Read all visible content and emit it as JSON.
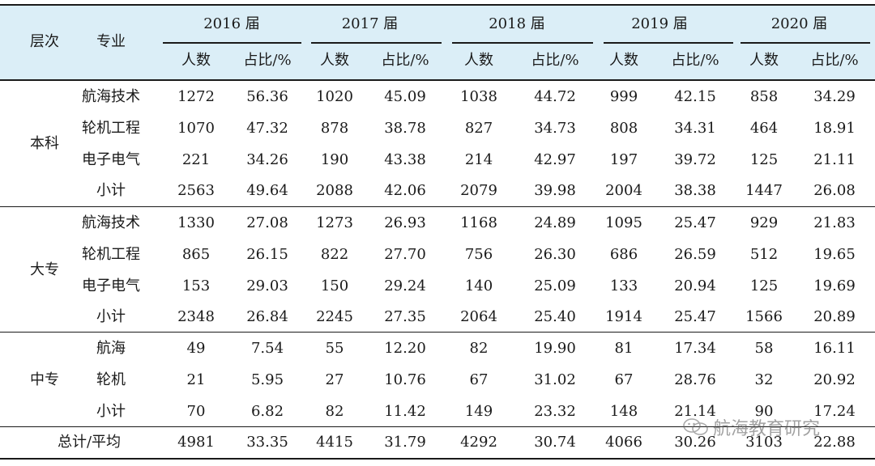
{
  "header": {
    "level_label": "层次",
    "major_label": "专业",
    "years": [
      "2016 届",
      "2017 届",
      "2018 届",
      "2019 届",
      "2020 届"
    ],
    "count_label": "人数",
    "ratio_label": "占比/%"
  },
  "groups": [
    {
      "level": "本科",
      "rows": [
        {
          "major": "航海技术",
          "values": [
            "1272",
            "56.36",
            "1020",
            "45.09",
            "1038",
            "44.72",
            "999",
            "42.15",
            "858",
            "34.29"
          ]
        },
        {
          "major": "轮机工程",
          "values": [
            "1070",
            "47.32",
            "878",
            "38.78",
            "827",
            "34.73",
            "808",
            "34.31",
            "464",
            "18.91"
          ]
        },
        {
          "major": "电子电气",
          "values": [
            "221",
            "34.26",
            "190",
            "43.38",
            "214",
            "42.97",
            "197",
            "39.72",
            "125",
            "21.11"
          ]
        },
        {
          "major": "小计",
          "values": [
            "2563",
            "49.64",
            "2088",
            "42.06",
            "2079",
            "39.98",
            "2004",
            "38.38",
            "1447",
            "26.08"
          ]
        }
      ]
    },
    {
      "level": "大专",
      "rows": [
        {
          "major": "航海技术",
          "values": [
            "1330",
            "27.08",
            "1273",
            "26.93",
            "1168",
            "24.89",
            "1095",
            "25.47",
            "929",
            "21.83"
          ]
        },
        {
          "major": "轮机工程",
          "values": [
            "865",
            "26.15",
            "822",
            "27.70",
            "756",
            "26.30",
            "686",
            "26.59",
            "512",
            "19.65"
          ]
        },
        {
          "major": "电子电气",
          "values": [
            "153",
            "29.03",
            "150",
            "29.24",
            "140",
            "25.09",
            "133",
            "20.94",
            "125",
            "19.69"
          ]
        },
        {
          "major": "小计",
          "values": [
            "2348",
            "26.84",
            "2245",
            "27.35",
            "2064",
            "25.40",
            "1914",
            "25.47",
            "1566",
            "20.89"
          ]
        }
      ]
    },
    {
      "level": "中专",
      "rows": [
        {
          "major": "航海",
          "values": [
            "49",
            "7.54",
            "55",
            "12.20",
            "82",
            "19.90",
            "81",
            "17.34",
            "58",
            "16.11"
          ]
        },
        {
          "major": "轮机",
          "values": [
            "21",
            "5.95",
            "27",
            "10.76",
            "67",
            "31.02",
            "67",
            "28.76",
            "32",
            "20.92"
          ]
        },
        {
          "major": "小计",
          "values": [
            "70",
            "6.82",
            "82",
            "11.42",
            "149",
            "23.32",
            "148",
            "21.14",
            "90",
            "17.24"
          ]
        }
      ]
    }
  ],
  "total": {
    "label": "总计/平均",
    "values": [
      "4981",
      "33.35",
      "4415",
      "31.79",
      "4292",
      "30.74",
      "4066",
      "30.26",
      "3103",
      "22.88"
    ]
  },
  "watermark": {
    "icon": "wechat-icon",
    "text": "航海教育研究"
  }
}
